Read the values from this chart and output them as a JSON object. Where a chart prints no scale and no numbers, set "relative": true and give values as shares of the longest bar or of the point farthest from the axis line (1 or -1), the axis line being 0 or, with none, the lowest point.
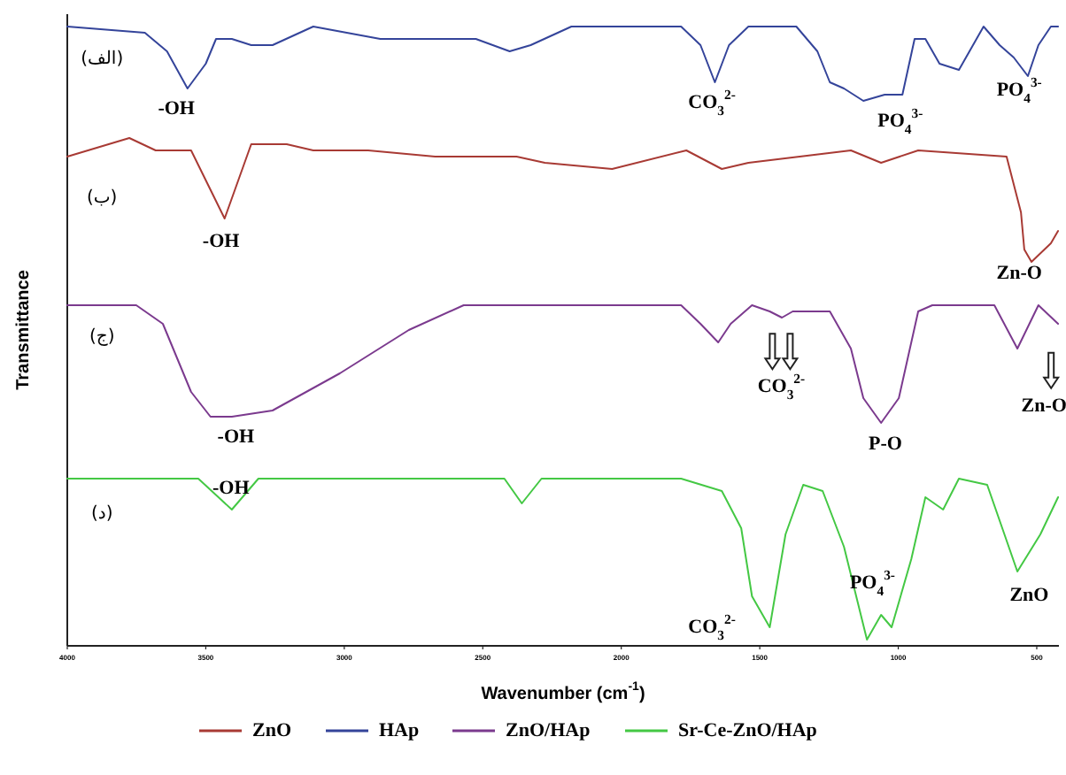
{
  "chart_data": {
    "type": "line",
    "relative": true,
    "xlabel": "Wavenumber (cm$^{-1}$)",
    "ylabel": "Transmittance",
    "xlim": [
      4000,
      420
    ],
    "xticks": [
      4000,
      3500,
      3000,
      2500,
      2000,
      1500,
      1000,
      500
    ],
    "legend": "bottom",
    "grid": false,
    "marker": "none",
    "line_style": "solid",
    "series": [
      {
        "name": "ZnO",
        "color": "#a83a34",
        "x": [
          4000,
          3776,
          3681,
          3553,
          3432,
          3336,
          3208,
          3112,
          2914,
          2672,
          2378,
          2276,
          2033,
          1765,
          1637,
          1541,
          1171,
          1062,
          928,
          609,
          557,
          545,
          519,
          449,
          423
        ],
        "values": [
          0.79,
          0.82,
          0.8,
          0.8,
          0.69,
          0.81,
          0.81,
          0.8,
          0.8,
          0.79,
          0.79,
          0.78,
          0.77,
          0.8,
          0.77,
          0.78,
          0.8,
          0.78,
          0.8,
          0.79,
          0.7,
          0.64,
          0.62,
          0.65,
          0.67
        ]
      },
      {
        "name": "HAp",
        "color": "#34449a",
        "x": [
          4000,
          3720,
          3640,
          3566,
          3500,
          3463,
          3406,
          3336,
          3259,
          3112,
          2870,
          2525,
          2403,
          2327,
          2180,
          1784,
          1714,
          1662,
          1611,
          1541,
          1368,
          1292,
          1247,
          1196,
          1126,
          1049,
          985,
          941,
          902,
          851,
          781,
          692,
          634,
          583,
          532,
          494,
          449,
          423
        ],
        "values": [
          1,
          0.99,
          0.96,
          0.9,
          0.94,
          0.98,
          0.98,
          0.97,
          0.97,
          1,
          0.98,
          0.98,
          0.96,
          0.97,
          1,
          1,
          0.97,
          0.91,
          0.97,
          1,
          1,
          0.96,
          0.91,
          0.9,
          0.88,
          0.89,
          0.89,
          0.98,
          0.98,
          0.94,
          0.93,
          1,
          0.97,
          0.95,
          0.92,
          0.97,
          1,
          1
        ]
      },
      {
        "name": "ZnO/HAp",
        "color": "#7b3a8e",
        "x": [
          4000,
          3751,
          3655,
          3553,
          3483,
          3406,
          3259,
          3016,
          2767,
          2569,
          2276,
          1784,
          1714,
          1650,
          1605,
          1528,
          1464,
          1420,
          1381,
          1247,
          1171,
          1126,
          1062,
          998,
          928,
          877,
          653,
          570,
          494,
          423
        ],
        "values": [
          0.55,
          0.55,
          0.52,
          0.41,
          0.37,
          0.37,
          0.38,
          0.44,
          0.51,
          0.55,
          0.55,
          0.55,
          0.52,
          0.49,
          0.52,
          0.55,
          0.54,
          0.53,
          0.54,
          0.54,
          0.48,
          0.4,
          0.36,
          0.4,
          0.54,
          0.55,
          0.55,
          0.48,
          0.55,
          0.52
        ]
      },
      {
        "name": "Sr-Ce-ZnO/HAp",
        "color": "#44c844",
        "x": [
          4000,
          3527,
          3406,
          3310,
          2889,
          2422,
          2359,
          2288,
          1784,
          1637,
          1567,
          1528,
          1464,
          1407,
          1343,
          1273,
          1196,
          1113,
          1062,
          1024,
          953,
          902,
          838,
          781,
          679,
          570,
          487,
          423
        ],
        "values": [
          0.27,
          0.27,
          0.22,
          0.27,
          0.27,
          0.27,
          0.23,
          0.27,
          0.27,
          0.25,
          0.19,
          0.08,
          0.03,
          0.18,
          0.26,
          0.25,
          0.16,
          0.01,
          0.05,
          0.03,
          0.14,
          0.24,
          0.22,
          0.27,
          0.26,
          0.12,
          0.18,
          0.24
        ]
      }
    ],
    "annotations": [
      "(الف)",
      "-OH",
      "CO$_{3}$$^{2-}$",
      "PO$_{4}$$^{3-}$",
      "PO$_{4}$$^{3-}$",
      "(ب)",
      "-OH",
      "Zn-O",
      "(ج)",
      "-OH",
      "CO$_{3}$$^{2-}$",
      "P-O",
      "Zn-O",
      "(د)",
      "-OH",
      "CO$_{3}$$^{2-}$",
      "PO$_{4}$$^{3-}$",
      "ZnO"
    ]
  }
}
